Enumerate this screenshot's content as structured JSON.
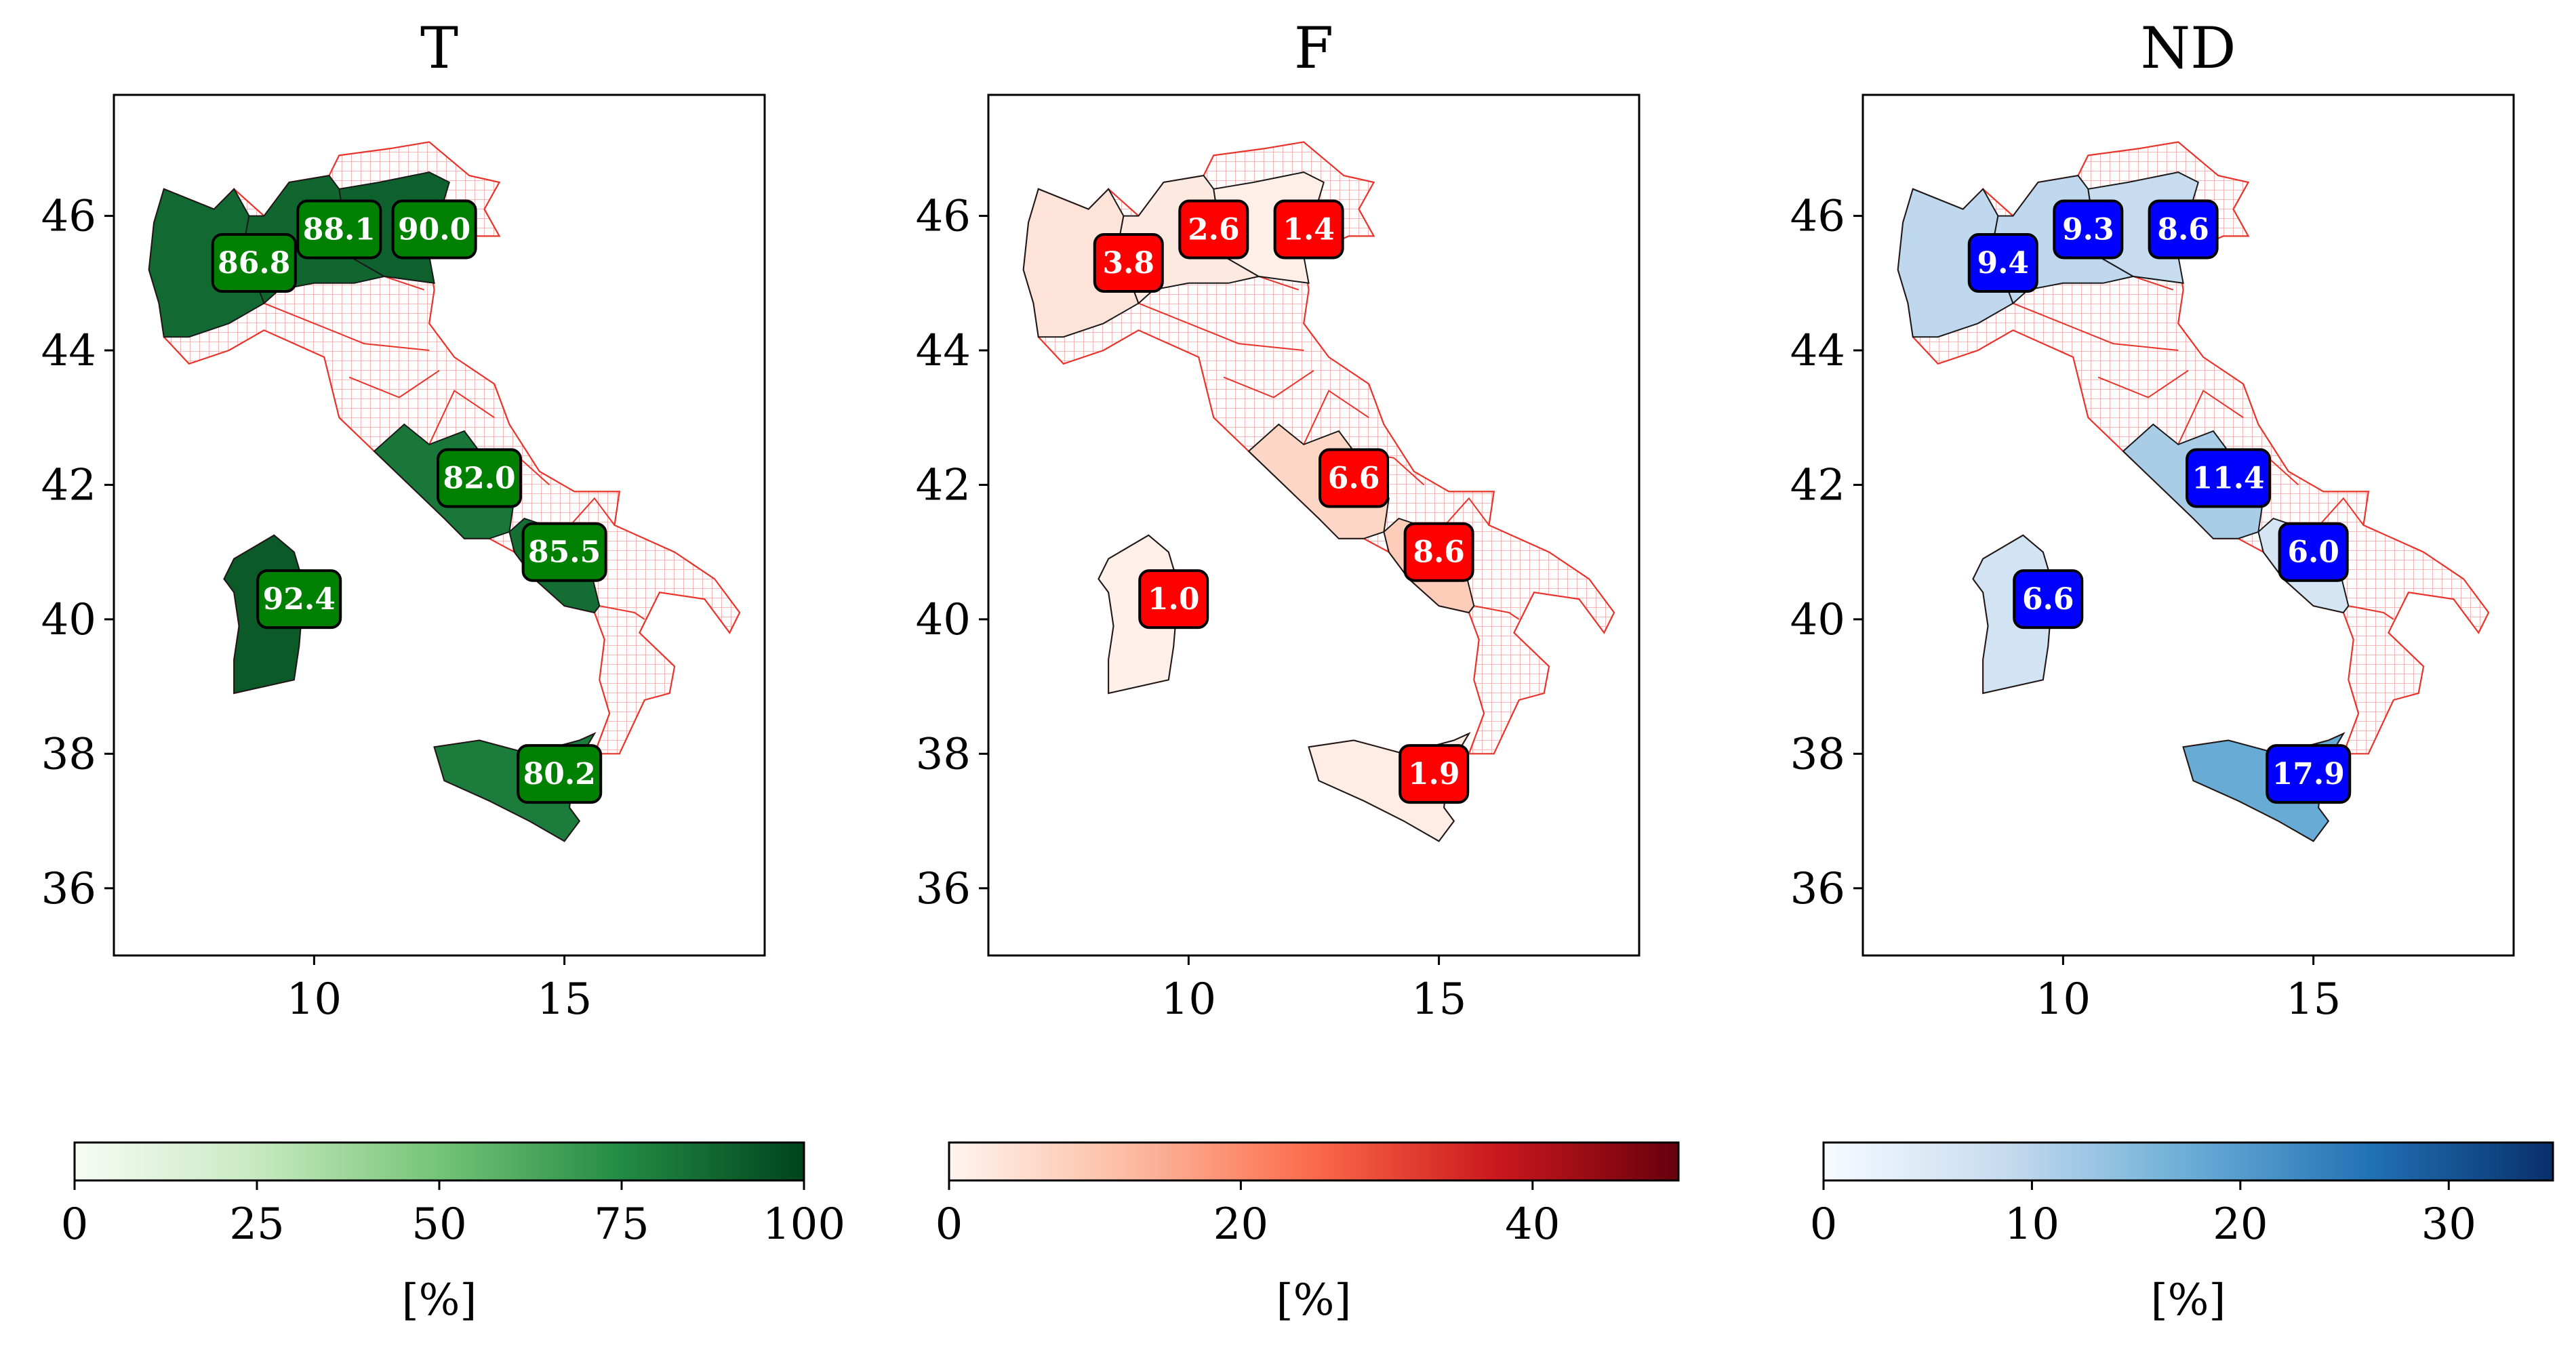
{
  "figure": {
    "region_order": [
      "piemonte",
      "lombardia",
      "veneto",
      "lazio",
      "campania",
      "sardegna",
      "sicilia"
    ],
    "axes": {
      "x_range": [
        6,
        19
      ],
      "y_range": [
        35,
        47.8
      ],
      "x_ticks": [
        10,
        15
      ],
      "y_ticks": [
        36,
        38,
        40,
        42,
        44,
        46
      ]
    },
    "panels": [
      {
        "id": "T",
        "title": "T",
        "label_bg": "#008000",
        "colorbar": {
          "cmap": [
            "#f7fcf5",
            "#c7e9c0",
            "#74c476",
            "#238b45",
            "#00441b"
          ],
          "min": 0,
          "max": 100,
          "ticks": [
            "0",
            "25",
            "50",
            "75",
            "100"
          ],
          "label": "[%]"
        },
        "regions": [
          {
            "name": "Piemonte",
            "value": 86.8,
            "label": "86.8"
          },
          {
            "name": "Lombardia",
            "value": 88.1,
            "label": "88.1"
          },
          {
            "name": "Veneto",
            "value": 90.0,
            "label": "90.0"
          },
          {
            "name": "Lazio",
            "value": 82.0,
            "label": "82.0"
          },
          {
            "name": "Campania",
            "value": 85.5,
            "label": "85.5"
          },
          {
            "name": "Sardegna",
            "value": 92.4,
            "label": "92.4"
          },
          {
            "name": "Sicilia",
            "value": 80.2,
            "label": "80.2"
          }
        ]
      },
      {
        "id": "F",
        "title": "F",
        "label_bg": "#ff0000",
        "colorbar": {
          "cmap": [
            "#fff5f0",
            "#fcbba1",
            "#fb6a4a",
            "#cb181d",
            "#67000d"
          ],
          "min": 0,
          "max": 50,
          "ticks": [
            "0",
            "20",
            "40"
          ],
          "tick_values": [
            0,
            20,
            40
          ],
          "label": "[%]"
        },
        "regions": [
          {
            "name": "Piemonte",
            "value": 3.8,
            "label": "3.8"
          },
          {
            "name": "Lombardia",
            "value": 2.6,
            "label": "2.6"
          },
          {
            "name": "Veneto",
            "value": 1.4,
            "label": "1.4"
          },
          {
            "name": "Lazio",
            "value": 6.6,
            "label": "6.6"
          },
          {
            "name": "Campania",
            "value": 8.6,
            "label": "8.6"
          },
          {
            "name": "Sardegna",
            "value": 1.0,
            "label": "1.0"
          },
          {
            "name": "Sicilia",
            "value": 1.9,
            "label": "1.9"
          }
        ]
      },
      {
        "id": "ND",
        "title": "ND",
        "label_bg": "#0000ff",
        "colorbar": {
          "cmap": [
            "#f7fbff",
            "#c6dbef",
            "#6baed6",
            "#2171b5",
            "#08306b"
          ],
          "min": 0,
          "max": 35,
          "ticks": [
            "0",
            "10",
            "20",
            "30"
          ],
          "tick_values": [
            0,
            10,
            20,
            30
          ],
          "label": "[%]"
        },
        "regions": [
          {
            "name": "Piemonte",
            "value": 9.4,
            "label": "9.4"
          },
          {
            "name": "Lombardia",
            "value": 9.3,
            "label": "9.3"
          },
          {
            "name": "Veneto",
            "value": 8.6,
            "label": "8.6"
          },
          {
            "name": "Lazio",
            "value": 11.4,
            "label": "11.4"
          },
          {
            "name": "Campania",
            "value": 6.0,
            "label": "6.0"
          },
          {
            "name": "Sardegna",
            "value": 6.6,
            "label": "6.6"
          },
          {
            "name": "Sicilia",
            "value": 17.9,
            "label": "17.9"
          }
        ]
      }
    ]
  }
}
